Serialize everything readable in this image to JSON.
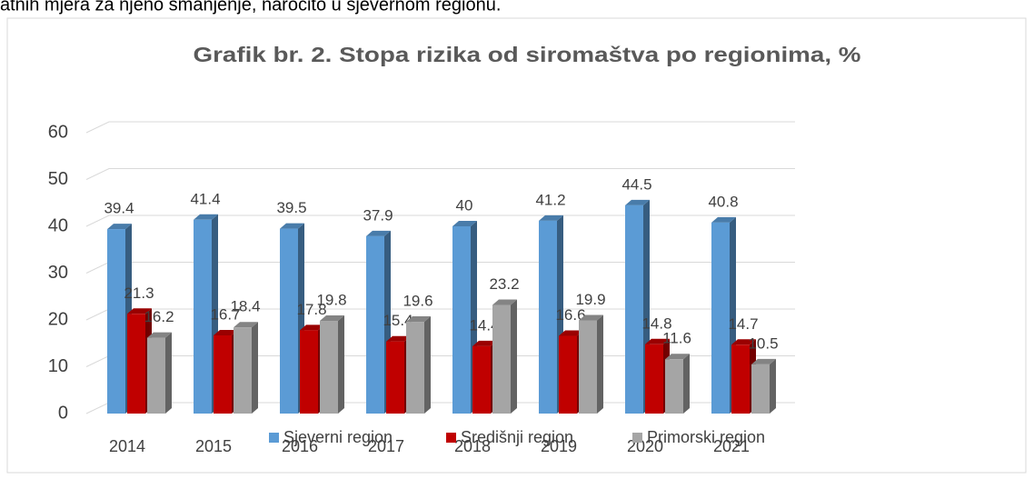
{
  "page_text": "atnih mjera za njeno smanjenje, naročito u sjevernom regionu.",
  "chart_data": {
    "type": "bar3d",
    "title": "Grafik br. 2. Stopa rizika od siromaštva po regionima, %",
    "categories": [
      "2014",
      "2015",
      "2016",
      "2017",
      "2018",
      "2019",
      "2020",
      "2021"
    ],
    "series": [
      {
        "name": "Sjeverni region",
        "color": "#5b9bd5",
        "values": [
          39.4,
          41.4,
          39.5,
          37.9,
          40,
          41.2,
          44.5,
          40.8
        ]
      },
      {
        "name": "Središnji region",
        "color": "#c00000",
        "values": [
          21.3,
          16.7,
          17.8,
          15.4,
          14.4,
          16.6,
          14.8,
          14.7
        ]
      },
      {
        "name": "Primorski region",
        "color": "#a5a5a5",
        "values": [
          16.2,
          18.4,
          19.8,
          19.6,
          23.2,
          19.9,
          11.6,
          10.5
        ]
      }
    ],
    "ylim": [
      0,
      60
    ],
    "yticks": [
      0,
      10,
      20,
      30,
      40,
      50,
      60
    ],
    "grid": true,
    "legend": "bottom"
  }
}
